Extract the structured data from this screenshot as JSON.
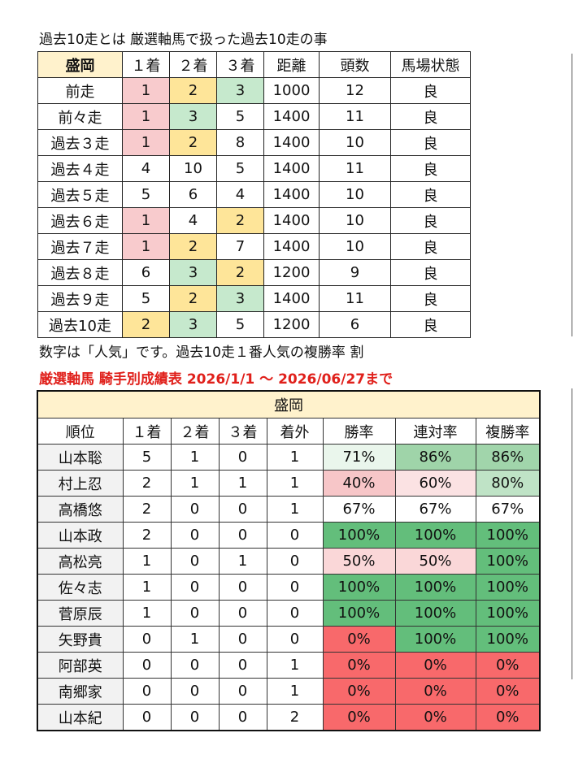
{
  "top_heading": "過去10走とは 厳選軸馬で扱った過去10走の事",
  "colors": {
    "pink": "#f8cbcd",
    "yellow": "#fee599",
    "green": "#c6e9cd",
    "header_bg": "#fff2cc",
    "red_title": "#e0201b"
  },
  "table1": {
    "headers": [
      "盛岡",
      "１着",
      "２着",
      "３着",
      "距離",
      "頭数",
      "馬場状態"
    ],
    "rows": [
      {
        "label": "前走",
        "c": [
          "1",
          "2",
          "3"
        ],
        "hl": [
          "pink",
          "yellow",
          "green"
        ],
        "dist": "1000",
        "count": "12",
        "track": "良"
      },
      {
        "label": "前々走",
        "c": [
          "1",
          "3",
          "5"
        ],
        "hl": [
          "pink",
          "green",
          ""
        ],
        "dist": "1400",
        "count": "11",
        "track": "良"
      },
      {
        "label": "過去３走",
        "c": [
          "1",
          "2",
          "8"
        ],
        "hl": [
          "pink",
          "yellow",
          ""
        ],
        "dist": "1400",
        "count": "10",
        "track": "良"
      },
      {
        "label": "過去４走",
        "c": [
          "4",
          "10",
          "5"
        ],
        "hl": [
          "",
          "",
          ""
        ],
        "dist": "1400",
        "count": "11",
        "track": "良"
      },
      {
        "label": "過去５走",
        "c": [
          "5",
          "6",
          "4"
        ],
        "hl": [
          "",
          "",
          ""
        ],
        "dist": "1400",
        "count": "10",
        "track": "良"
      },
      {
        "label": "過去６走",
        "c": [
          "1",
          "4",
          "2"
        ],
        "hl": [
          "pink",
          "",
          "yellow"
        ],
        "dist": "1400",
        "count": "10",
        "track": "良"
      },
      {
        "label": "過去７走",
        "c": [
          "1",
          "2",
          "7"
        ],
        "hl": [
          "pink",
          "yellow",
          ""
        ],
        "dist": "1400",
        "count": "10",
        "track": "良"
      },
      {
        "label": "過去８走",
        "c": [
          "6",
          "3",
          "2"
        ],
        "hl": [
          "",
          "green",
          "yellow"
        ],
        "dist": "1200",
        "count": "9",
        "track": "良"
      },
      {
        "label": "過去９走",
        "c": [
          "5",
          "2",
          "3"
        ],
        "hl": [
          "",
          "yellow",
          "green"
        ],
        "dist": "1400",
        "count": "11",
        "track": "良"
      },
      {
        "label": "過去10走",
        "c": [
          "2",
          "3",
          "5"
        ],
        "hl": [
          "yellow",
          "green",
          ""
        ],
        "dist": "1200",
        "count": "6",
        "track": "良"
      }
    ]
  },
  "note": "数字は「人気」です。過去10走１番人気の複勝率 割",
  "red_title": "厳選軸馬 騎手別成績表 2026/1/1 ～ 2026/06/27まで",
  "table2": {
    "venue": "盛岡",
    "headers": [
      "順位",
      "１着",
      "２着",
      "３着",
      "着外",
      "勝率",
      "連対率",
      "複勝率"
    ],
    "rows": [
      {
        "name": "山本聡",
        "v": [
          "5",
          "1",
          "0",
          "1"
        ],
        "r": [
          "71%",
          "86%",
          "86%"
        ],
        "bg": [
          "#eaf6ec",
          "#9fd4a9",
          "#a1d5ab"
        ]
      },
      {
        "name": "村上忍",
        "v": [
          "2",
          "1",
          "1",
          "1"
        ],
        "r": [
          "40%",
          "60%",
          "80%"
        ],
        "bg": [
          "#f7c6c8",
          "#fbe2e3",
          "#bfe3c6"
        ]
      },
      {
        "name": "高橋悠",
        "v": [
          "2",
          "0",
          "0",
          "1"
        ],
        "r": [
          "67%",
          "67%",
          "67%"
        ],
        "bg": [
          "#ffffff",
          "#ffffff",
          "#ffffff"
        ]
      },
      {
        "name": "山本政",
        "v": [
          "2",
          "0",
          "0",
          "0"
        ],
        "r": [
          "100%",
          "100%",
          "100%"
        ],
        "bg": [
          "#63be7b",
          "#63be7b",
          "#63be7b"
        ]
      },
      {
        "name": "高松亮",
        "v": [
          "1",
          "0",
          "1",
          "0"
        ],
        "r": [
          "50%",
          "50%",
          "100%"
        ],
        "bg": [
          "#fad7d8",
          "#fad7d8",
          "#63be7b"
        ]
      },
      {
        "name": "佐々志",
        "v": [
          "1",
          "0",
          "0",
          "0"
        ],
        "r": [
          "100%",
          "100%",
          "100%"
        ],
        "bg": [
          "#63be7b",
          "#63be7b",
          "#63be7b"
        ]
      },
      {
        "name": "菅原辰",
        "v": [
          "1",
          "0",
          "0",
          "0"
        ],
        "r": [
          "100%",
          "100%",
          "100%"
        ],
        "bg": [
          "#63be7b",
          "#63be7b",
          "#63be7b"
        ]
      },
      {
        "name": "矢野貴",
        "v": [
          "0",
          "1",
          "0",
          "0"
        ],
        "r": [
          "0%",
          "100%",
          "100%"
        ],
        "bg": [
          "#f8696b",
          "#63be7b",
          "#63be7b"
        ]
      },
      {
        "name": "阿部英",
        "v": [
          "0",
          "0",
          "0",
          "1"
        ],
        "r": [
          "0%",
          "0%",
          "0%"
        ],
        "bg": [
          "#f8696b",
          "#f8696b",
          "#f8696b"
        ]
      },
      {
        "name": "南郷家",
        "v": [
          "0",
          "0",
          "0",
          "1"
        ],
        "r": [
          "0%",
          "0%",
          "0%"
        ],
        "bg": [
          "#f8696b",
          "#f8696b",
          "#f8696b"
        ]
      },
      {
        "name": "山本紀",
        "v": [
          "0",
          "0",
          "0",
          "2"
        ],
        "r": [
          "0%",
          "0%",
          "0%"
        ],
        "bg": [
          "#f8696b",
          "#f8696b",
          "#f8696b"
        ]
      }
    ]
  }
}
